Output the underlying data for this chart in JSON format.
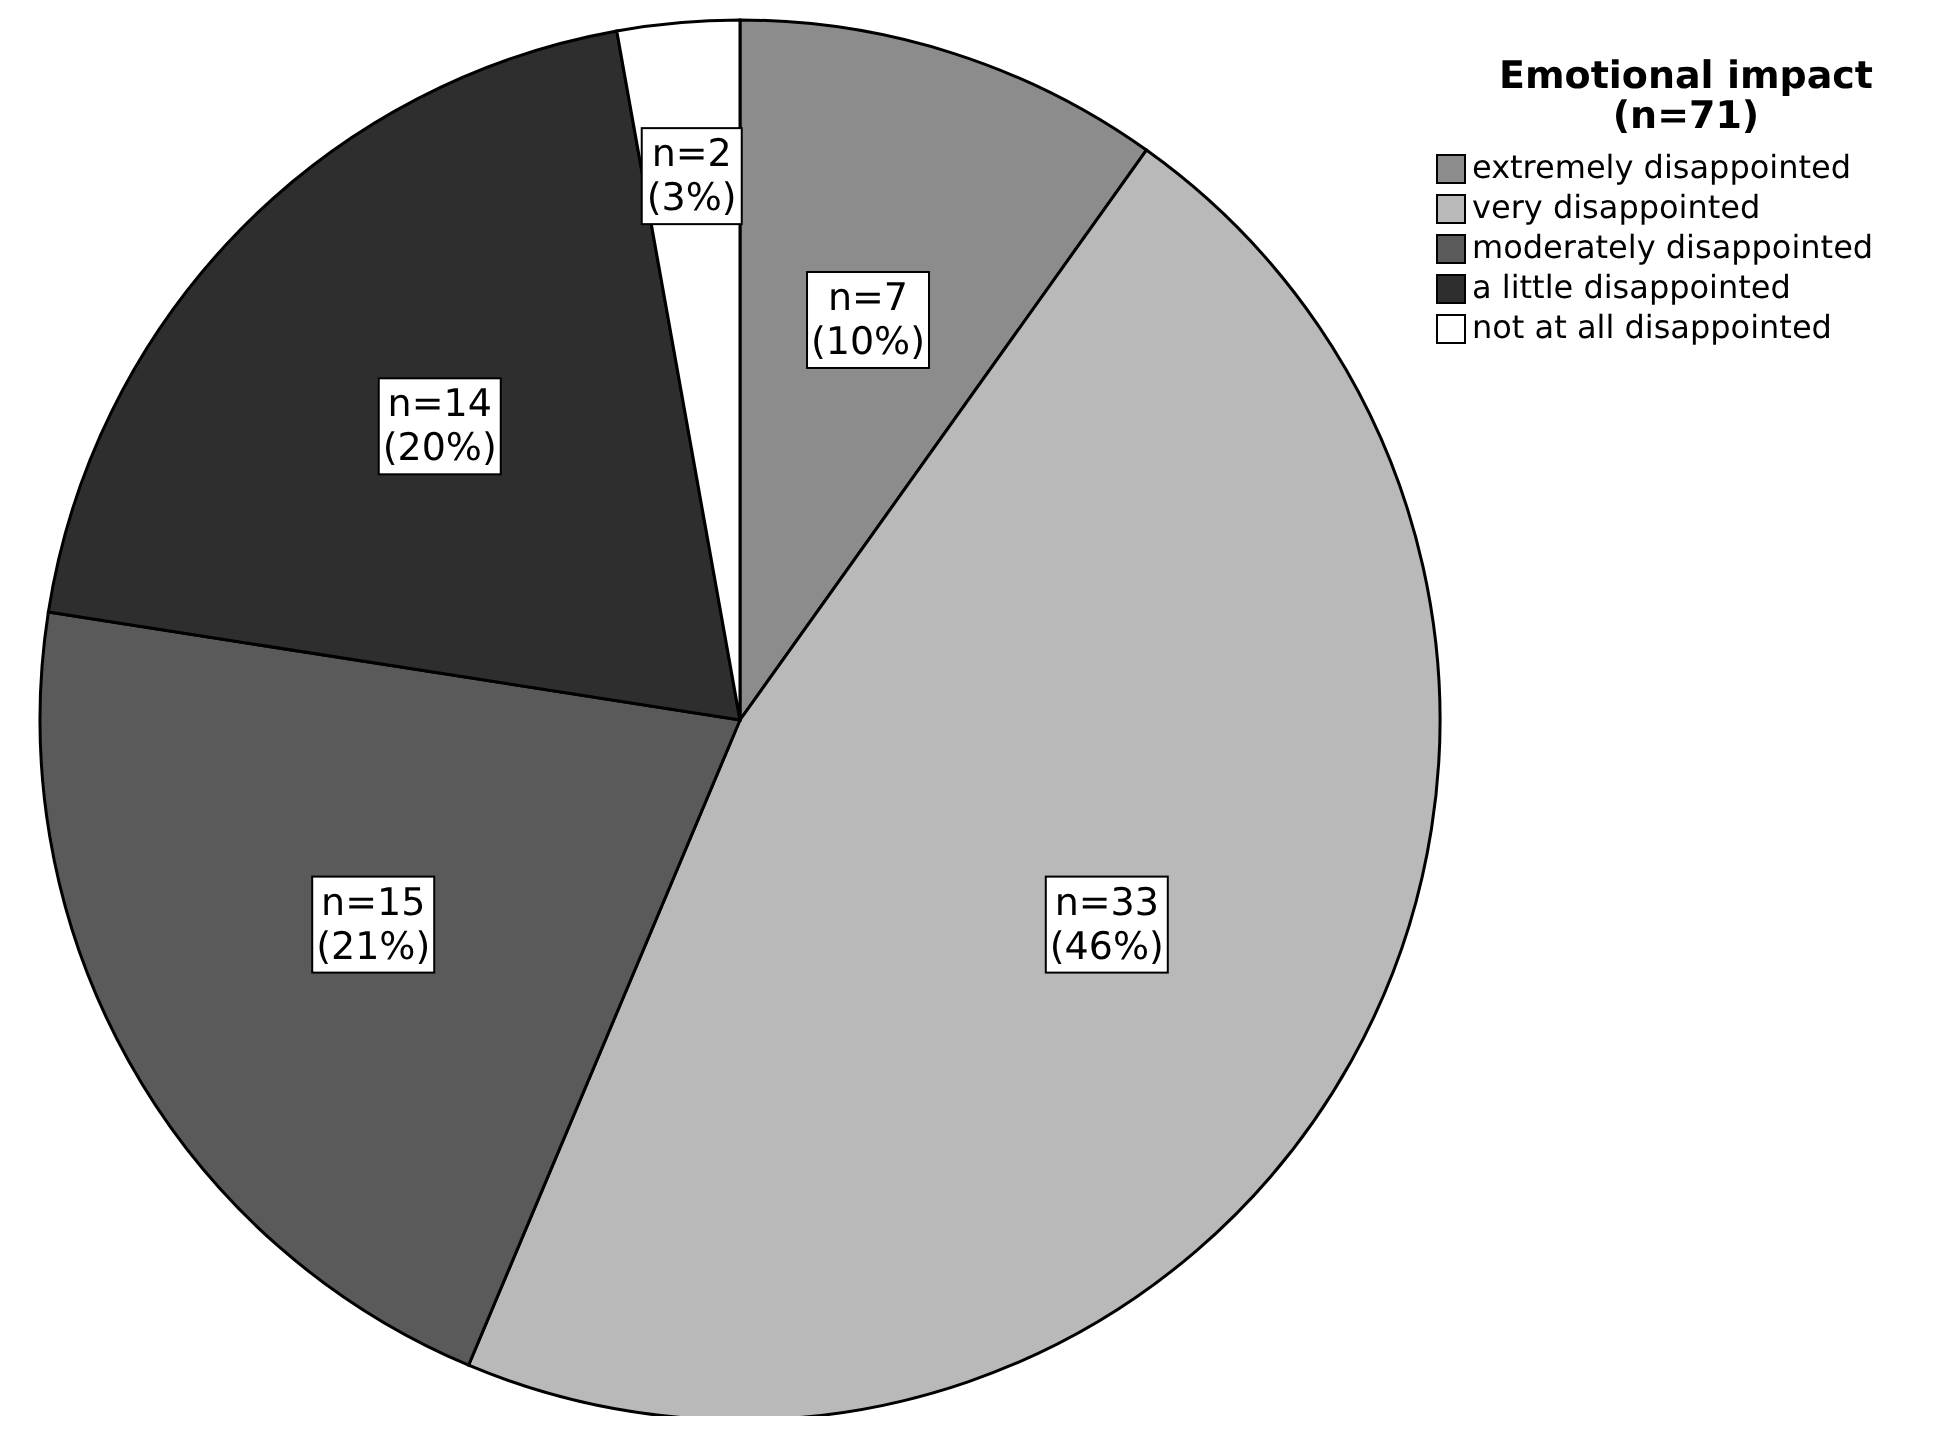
{
  "chart_data": {
    "type": "pie",
    "legend_title": "Emotional impact\n(n=71)",
    "categories": [
      "extremely disappointed",
      "very disappointed",
      "moderately disappointed",
      "a little disappointed",
      "not at all disappointed"
    ],
    "values": [
      7,
      33,
      15,
      14,
      2
    ],
    "value_labels": [
      "n=7\n(10%)",
      "n=33\n(46%)",
      "n=15\n(21%)",
      "n=14\n(20%)",
      "n=2\n(3%)"
    ],
    "colors": [
      "#8c8c8c",
      "#b9b9b9",
      "#5a5a5a",
      "#2e2e2e",
      "#ffffff"
    ],
    "legend": "top right"
  }
}
